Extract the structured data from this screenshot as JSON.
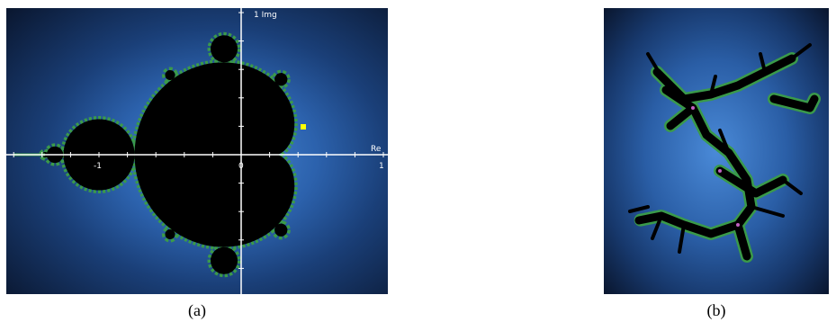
{
  "panel_a": {
    "axis_labels": {
      "imag": "1 Img",
      "real": "Re"
    },
    "tick_labels": [
      "-1",
      "0",
      "1"
    ],
    "caption": "(a)"
  },
  "panel_b": {
    "caption": "(b)"
  }
}
